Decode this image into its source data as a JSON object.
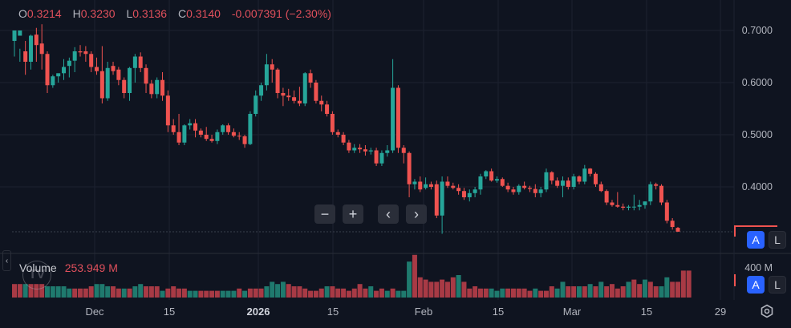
{
  "legend": {
    "open_label": "O",
    "open": "0.3214",
    "high_label": "H",
    "high": "0.3230",
    "low_label": "L",
    "low": "0.3136",
    "close_label": "C",
    "close": "0.3140",
    "change": "-0.007391 (−2.30%)"
  },
  "volume_legend": {
    "label": "Volume",
    "value": "253.949 M"
  },
  "price_axis": {
    "ticks": [
      "0.7000",
      "0.6000",
      "0.5000",
      "0.4000"
    ]
  },
  "volume_axis": {
    "ticks": [
      "400 M"
    ]
  },
  "time_axis": {
    "ticks": [
      "Dec",
      "15",
      "2026",
      "15",
      "Feb",
      "15",
      "Mar",
      "15",
      "29"
    ]
  },
  "nav_buttons": {
    "zoom_out": "−",
    "zoom_in": "+",
    "scroll_left": "‹",
    "scroll_right": "›"
  },
  "scale_buttons": {
    "auto": "A",
    "log": "L"
  },
  "colors": {
    "up": "#26a69a",
    "down": "#ef5350",
    "background": "#0f1420",
    "grid": "#1c2230",
    "accent": "#2962ff"
  },
  "chart_data": {
    "type": "candlestick",
    "title": "",
    "xlabel": "",
    "ylabel": "",
    "ylim": [
      0.3,
      0.72
    ],
    "x_ticks": [
      "Dec",
      "15",
      "2026",
      "15",
      "Feb",
      "15",
      "Mar",
      "15",
      "29"
    ],
    "y_ticks": [
      0.7,
      0.6,
      0.5,
      0.4
    ],
    "last": {
      "open": 0.3214,
      "high": 0.323,
      "low": 0.3136,
      "close": 0.314,
      "change": -0.007391,
      "change_pct": -2.3
    },
    "last_volume": "253.949 M",
    "ohlc": [
      [
        0.68,
        0.7,
        0.65,
        0.7
      ],
      [
        0.69,
        0.665,
        0.64,
        0.7
      ],
      [
        0.66,
        0.68,
        0.615,
        0.64
      ],
      [
        0.64,
        0.692,
        0.625,
        0.69
      ],
      [
        0.692,
        0.705,
        0.64,
        0.672
      ],
      [
        0.675,
        0.712,
        0.625,
        0.655
      ],
      [
        0.655,
        0.66,
        0.58,
        0.595
      ],
      [
        0.595,
        0.615,
        0.59,
        0.612
      ],
      [
        0.612,
        0.615,
        0.6,
        0.618
      ],
      [
        0.618,
        0.645,
        0.605,
        0.63
      ],
      [
        0.632,
        0.648,
        0.61,
        0.642
      ],
      [
        0.642,
        0.668,
        0.62,
        0.66
      ],
      [
        0.66,
        0.672,
        0.65,
        0.658
      ],
      [
        0.66,
        0.67,
        0.64,
        0.655
      ],
      [
        0.655,
        0.66,
        0.62,
        0.63
      ],
      [
        0.63,
        0.648,
        0.615,
        0.622
      ],
      [
        0.622,
        0.67,
        0.56,
        0.57
      ],
      [
        0.57,
        0.64,
        0.565,
        0.628
      ],
      [
        0.632,
        0.64,
        0.615,
        0.622
      ],
      [
        0.625,
        0.63,
        0.595,
        0.605
      ],
      [
        0.605,
        0.61,
        0.57,
        0.58
      ],
      [
        0.58,
        0.63,
        0.565,
        0.628
      ],
      [
        0.628,
        0.655,
        0.6,
        0.65
      ],
      [
        0.65,
        0.658,
        0.62,
        0.628
      ],
      [
        0.628,
        0.635,
        0.58,
        0.598
      ],
      [
        0.598,
        0.605,
        0.57,
        0.578
      ],
      [
        0.578,
        0.61,
        0.57,
        0.605
      ],
      [
        0.605,
        0.62,
        0.565,
        0.575
      ],
      [
        0.575,
        0.585,
        0.505,
        0.518
      ],
      [
        0.518,
        0.53,
        0.5,
        0.505
      ],
      [
        0.505,
        0.54,
        0.48,
        0.485
      ],
      [
        0.485,
        0.52,
        0.48,
        0.518
      ],
      [
        0.518,
        0.53,
        0.51,
        0.522
      ],
      [
        0.522,
        0.53,
        0.495,
        0.508
      ],
      [
        0.508,
        0.512,
        0.495,
        0.5
      ],
      [
        0.5,
        0.515,
        0.488,
        0.492
      ],
      [
        0.492,
        0.5,
        0.485,
        0.488
      ],
      [
        0.488,
        0.51,
        0.482,
        0.505
      ],
      [
        0.505,
        0.52,
        0.5,
        0.518
      ],
      [
        0.518,
        0.522,
        0.5,
        0.505
      ],
      [
        0.505,
        0.512,
        0.495,
        0.498
      ],
      [
        0.498,
        0.505,
        0.49,
        0.497
      ],
      [
        0.497,
        0.5,
        0.475,
        0.482
      ],
      [
        0.482,
        0.545,
        0.48,
        0.54
      ],
      [
        0.54,
        0.585,
        0.535,
        0.575
      ],
      [
        0.575,
        0.6,
        0.565,
        0.595
      ],
      [
        0.595,
        0.655,
        0.585,
        0.635
      ],
      [
        0.635,
        0.645,
        0.6,
        0.625
      ],
      [
        0.625,
        0.628,
        0.57,
        0.58
      ],
      [
        0.58,
        0.59,
        0.555,
        0.575
      ],
      [
        0.575,
        0.588,
        0.565,
        0.572
      ],
      [
        0.572,
        0.585,
        0.56,
        0.565
      ],
      [
        0.565,
        0.592,
        0.555,
        0.56
      ],
      [
        0.56,
        0.62,
        0.555,
        0.618
      ],
      [
        0.618,
        0.625,
        0.59,
        0.6
      ],
      [
        0.6,
        0.605,
        0.56,
        0.565
      ],
      [
        0.565,
        0.575,
        0.545,
        0.558
      ],
      [
        0.558,
        0.565,
        0.535,
        0.54
      ],
      [
        0.54,
        0.545,
        0.5,
        0.505
      ],
      [
        0.505,
        0.51,
        0.495,
        0.5
      ],
      [
        0.5,
        0.505,
        0.48,
        0.485
      ],
      [
        0.485,
        0.49,
        0.465,
        0.47
      ],
      [
        0.47,
        0.482,
        0.465,
        0.475
      ],
      [
        0.475,
        0.482,
        0.465,
        0.472
      ],
      [
        0.472,
        0.48,
        0.46,
        0.468
      ],
      [
        0.468,
        0.475,
        0.462,
        0.47
      ],
      [
        0.47,
        0.475,
        0.44,
        0.445
      ],
      [
        0.445,
        0.47,
        0.44,
        0.465
      ],
      [
        0.465,
        0.48,
        0.458,
        0.47
      ],
      [
        0.47,
        0.645,
        0.465,
        0.59
      ],
      [
        0.59,
        0.595,
        0.465,
        0.475
      ],
      [
        0.475,
        0.48,
        0.445,
        0.465
      ],
      [
        0.465,
        0.468,
        0.38,
        0.405
      ],
      [
        0.405,
        0.415,
        0.395,
        0.41
      ],
      [
        0.41,
        0.42,
        0.39,
        0.395
      ],
      [
        0.398,
        0.418,
        0.395,
        0.405
      ],
      [
        0.405,
        0.41,
        0.395,
        0.4
      ],
      [
        0.405,
        0.412,
        0.34,
        0.345
      ],
      [
        0.345,
        0.42,
        0.31,
        0.41
      ],
      [
        0.41,
        0.42,
        0.398,
        0.402
      ],
      [
        0.402,
        0.408,
        0.395,
        0.398
      ],
      [
        0.398,
        0.405,
        0.385,
        0.392
      ],
      [
        0.392,
        0.398,
        0.375,
        0.38
      ],
      [
        0.38,
        0.395,
        0.372,
        0.388
      ],
      [
        0.388,
        0.4,
        0.38,
        0.395
      ],
      [
        0.395,
        0.425,
        0.385,
        0.42
      ],
      [
        0.42,
        0.432,
        0.415,
        0.43
      ],
      [
        0.43,
        0.435,
        0.41,
        0.412
      ],
      [
        0.412,
        0.42,
        0.408,
        0.415
      ],
      [
        0.415,
        0.418,
        0.4,
        0.402
      ],
      [
        0.402,
        0.408,
        0.39,
        0.395
      ],
      [
        0.395,
        0.4,
        0.385,
        0.39
      ],
      [
        0.39,
        0.405,
        0.385,
        0.402
      ],
      [
        0.402,
        0.41,
        0.395,
        0.398
      ],
      [
        0.398,
        0.402,
        0.39,
        0.396
      ],
      [
        0.396,
        0.405,
        0.38,
        0.388
      ],
      [
        0.388,
        0.4,
        0.38,
        0.395
      ],
      [
        0.395,
        0.435,
        0.39,
        0.428
      ],
      [
        0.428,
        0.43,
        0.405,
        0.412
      ],
      [
        0.412,
        0.418,
        0.398,
        0.402
      ],
      [
        0.402,
        0.42,
        0.38,
        0.412
      ],
      [
        0.412,
        0.418,
        0.395,
        0.4
      ],
      [
        0.4,
        0.425,
        0.395,
        0.42
      ],
      [
        0.42,
        0.422,
        0.405,
        0.41
      ],
      [
        0.41,
        0.442,
        0.405,
        0.435
      ],
      [
        0.435,
        0.436,
        0.42,
        0.425
      ],
      [
        0.425,
        0.428,
        0.4,
        0.405
      ],
      [
        0.405,
        0.41,
        0.39,
        0.392
      ],
      [
        0.392,
        0.395,
        0.365,
        0.37
      ],
      [
        0.37,
        0.375,
        0.362,
        0.365
      ],
      [
        0.365,
        0.39,
        0.36,
        0.362
      ],
      [
        0.362,
        0.368,
        0.355,
        0.36
      ],
      [
        0.36,
        0.365,
        0.355,
        0.362
      ],
      [
        0.362,
        0.385,
        0.355,
        0.362
      ],
      [
        0.362,
        0.375,
        0.355,
        0.365
      ],
      [
        0.365,
        0.372,
        0.358,
        0.372
      ],
      [
        0.372,
        0.41,
        0.365,
        0.405
      ],
      [
        0.405,
        0.408,
        0.395,
        0.402
      ],
      [
        0.402,
        0.405,
        0.365,
        0.37
      ],
      [
        0.37,
        0.375,
        0.33,
        0.335
      ],
      [
        0.335,
        0.34,
        0.318,
        0.323
      ],
      [
        0.3214,
        0.323,
        0.3136,
        0.314
      ]
    ],
    "volume_series": [
      [
        6,
        0
      ],
      [
        6,
        0
      ],
      [
        6,
        1
      ],
      [
        6,
        0
      ],
      [
        6,
        0
      ],
      [
        6,
        0
      ],
      [
        5,
        1
      ],
      [
        5,
        1
      ],
      [
        5,
        1
      ],
      [
        5,
        1
      ],
      [
        4,
        1
      ],
      [
        4,
        0
      ],
      [
        4,
        0
      ],
      [
        4,
        0
      ],
      [
        5,
        0
      ],
      [
        6,
        1
      ],
      [
        6,
        1
      ],
      [
        5,
        1
      ],
      [
        5,
        0
      ],
      [
        4,
        0
      ],
      [
        4,
        1
      ],
      [
        4,
        0
      ],
      [
        5,
        1
      ],
      [
        6,
        1
      ],
      [
        5,
        0
      ],
      [
        5,
        0
      ],
      [
        5,
        0
      ],
      [
        3,
        1
      ],
      [
        4,
        0
      ],
      [
        5,
        0
      ],
      [
        4,
        0
      ],
      [
        4,
        0
      ],
      [
        3,
        1
      ],
      [
        3,
        1
      ],
      [
        3,
        0
      ],
      [
        3,
        0
      ],
      [
        3,
        0
      ],
      [
        3,
        0
      ],
      [
        3,
        1
      ],
      [
        3,
        1
      ],
      [
        3,
        1
      ],
      [
        4,
        0
      ],
      [
        3,
        1
      ],
      [
        4,
        0
      ],
      [
        4,
        0
      ],
      [
        4,
        0
      ],
      [
        5,
        1
      ],
      [
        7,
        1
      ],
      [
        6,
        1
      ],
      [
        7,
        1
      ],
      [
        6,
        0
      ],
      [
        5,
        0
      ],
      [
        5,
        0
      ],
      [
        4,
        0
      ],
      [
        3,
        0
      ],
      [
        3,
        0
      ],
      [
        4,
        0
      ],
      [
        5,
        1
      ],
      [
        5,
        0
      ],
      [
        4,
        0
      ],
      [
        4,
        0
      ],
      [
        3,
        0
      ],
      [
        4,
        0
      ],
      [
        6,
        0
      ],
      [
        4,
        0
      ],
      [
        5,
        1
      ],
      [
        3,
        0
      ],
      [
        4,
        0
      ],
      [
        3,
        1
      ],
      [
        4,
        0
      ],
      [
        3,
        1
      ],
      [
        3,
        1
      ],
      [
        16,
        1
      ],
      [
        19,
        0
      ],
      [
        9,
        0
      ],
      [
        8,
        0
      ],
      [
        7,
        0
      ],
      [
        7,
        0
      ],
      [
        8,
        0
      ],
      [
        7,
        0
      ],
      [
        9,
        0
      ],
      [
        10,
        1
      ],
      [
        7,
        0
      ],
      [
        4,
        0
      ],
      [
        5,
        0
      ],
      [
        4,
        0
      ],
      [
        4,
        0
      ],
      [
        4,
        1
      ],
      [
        3,
        1
      ],
      [
        4,
        1
      ],
      [
        4,
        0
      ],
      [
        4,
        0
      ],
      [
        4,
        0
      ],
      [
        4,
        0
      ],
      [
        3,
        0
      ],
      [
        4,
        1
      ],
      [
        3,
        0
      ],
      [
        3,
        0
      ],
      [
        5,
        0
      ],
      [
        4,
        1
      ],
      [
        7,
        1
      ],
      [
        5,
        0
      ],
      [
        5,
        0
      ],
      [
        5,
        1
      ],
      [
        5,
        0
      ],
      [
        6,
        1
      ],
      [
        5,
        0
      ],
      [
        7,
        1
      ],
      [
        5,
        0
      ],
      [
        6,
        0
      ],
      [
        4,
        0
      ],
      [
        5,
        0
      ],
      [
        7,
        1
      ],
      [
        8,
        0
      ],
      [
        6,
        0
      ],
      [
        8,
        1
      ],
      [
        7,
        0
      ],
      [
        5,
        0
      ],
      [
        5,
        1
      ],
      [
        9,
        1
      ],
      [
        7,
        0
      ],
      [
        7,
        0
      ],
      [
        12,
        0
      ],
      [
        12,
        0
      ]
    ]
  }
}
